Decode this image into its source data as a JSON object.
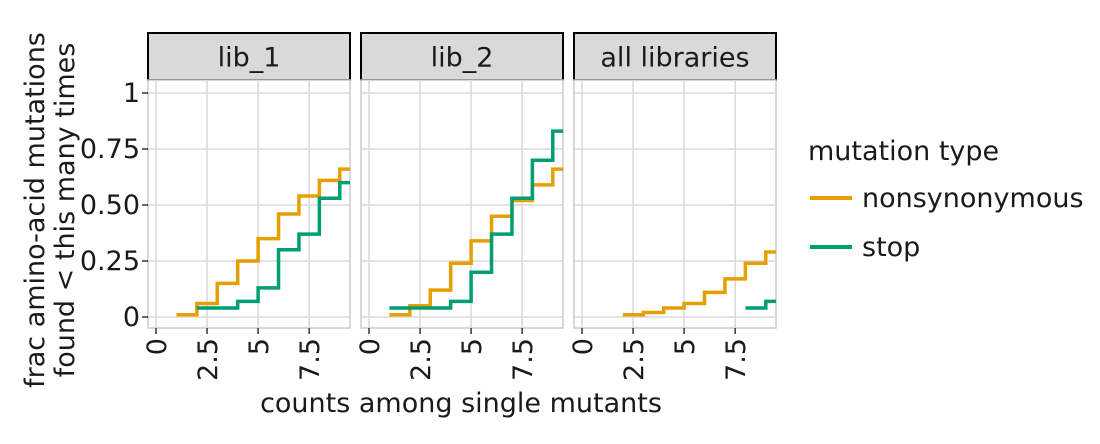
{
  "chart_data": {
    "type": "line",
    "step": true,
    "facets": [
      "lib_1",
      "lib_2",
      "all libraries"
    ],
    "xlabel": "counts among single mutants",
    "ylabel": [
      "frac amino-acid mutations",
      "found < this many times"
    ],
    "xlim": [
      0,
      9.5
    ],
    "ylim": [
      0,
      1
    ],
    "x_ticks": [
      0,
      2.5,
      5,
      7.5
    ],
    "x_tick_labels": [
      "0",
      "2.5",
      "5",
      "7.5"
    ],
    "y_ticks": [
      0,
      0.25,
      0.5,
      0.75,
      1
    ],
    "y_tick_labels": [
      "0",
      "0.25",
      "0.50",
      "0.75",
      "1"
    ],
    "legend": {
      "title": "mutation type",
      "placement": "right",
      "entries": [
        {
          "name": "nonsynonymous",
          "color": "#E69F00"
        },
        {
          "name": "stop",
          "color": "#009E73"
        }
      ]
    },
    "panels": [
      {
        "facet": "lib_1",
        "series": [
          {
            "name": "nonsynonymous",
            "x": [
              1,
              2,
              3,
              4,
              5,
              6,
              7,
              8,
              9,
              9.5
            ],
            "y": [
              0.01,
              0.06,
              0.15,
              0.25,
              0.35,
              0.46,
              0.54,
              0.61,
              0.66,
              0.66
            ]
          },
          {
            "name": "stop",
            "x": [
              2,
              3,
              4,
              5,
              6,
              7,
              8,
              9,
              9.5
            ],
            "y": [
              0.04,
              0.04,
              0.07,
              0.13,
              0.3,
              0.37,
              0.53,
              0.6,
              0.6
            ]
          }
        ]
      },
      {
        "facet": "lib_2",
        "series": [
          {
            "name": "nonsynonymous",
            "x": [
              1,
              2,
              3,
              4,
              5,
              6,
              7,
              8,
              9,
              9.5
            ],
            "y": [
              0.01,
              0.05,
              0.12,
              0.24,
              0.34,
              0.45,
              0.52,
              0.59,
              0.66,
              0.66
            ]
          },
          {
            "name": "stop",
            "x": [
              1,
              2,
              3,
              4,
              5,
              6,
              7,
              8,
              9,
              9.5
            ],
            "y": [
              0.04,
              0.04,
              0.04,
              0.07,
              0.2,
              0.37,
              0.53,
              0.7,
              0.83,
              0.83
            ]
          }
        ]
      },
      {
        "facet": "all libraries",
        "series": [
          {
            "name": "nonsynonymous",
            "x": [
              2,
              3,
              4,
              5,
              6,
              7,
              8,
              9,
              9.5
            ],
            "y": [
              0.01,
              0.02,
              0.04,
              0.06,
              0.11,
              0.17,
              0.24,
              0.29,
              0.29
            ]
          },
          {
            "name": "stop",
            "x": [
              8,
              9,
              9.5
            ],
            "y": [
              0.04,
              0.07,
              0.07
            ]
          }
        ]
      }
    ]
  }
}
